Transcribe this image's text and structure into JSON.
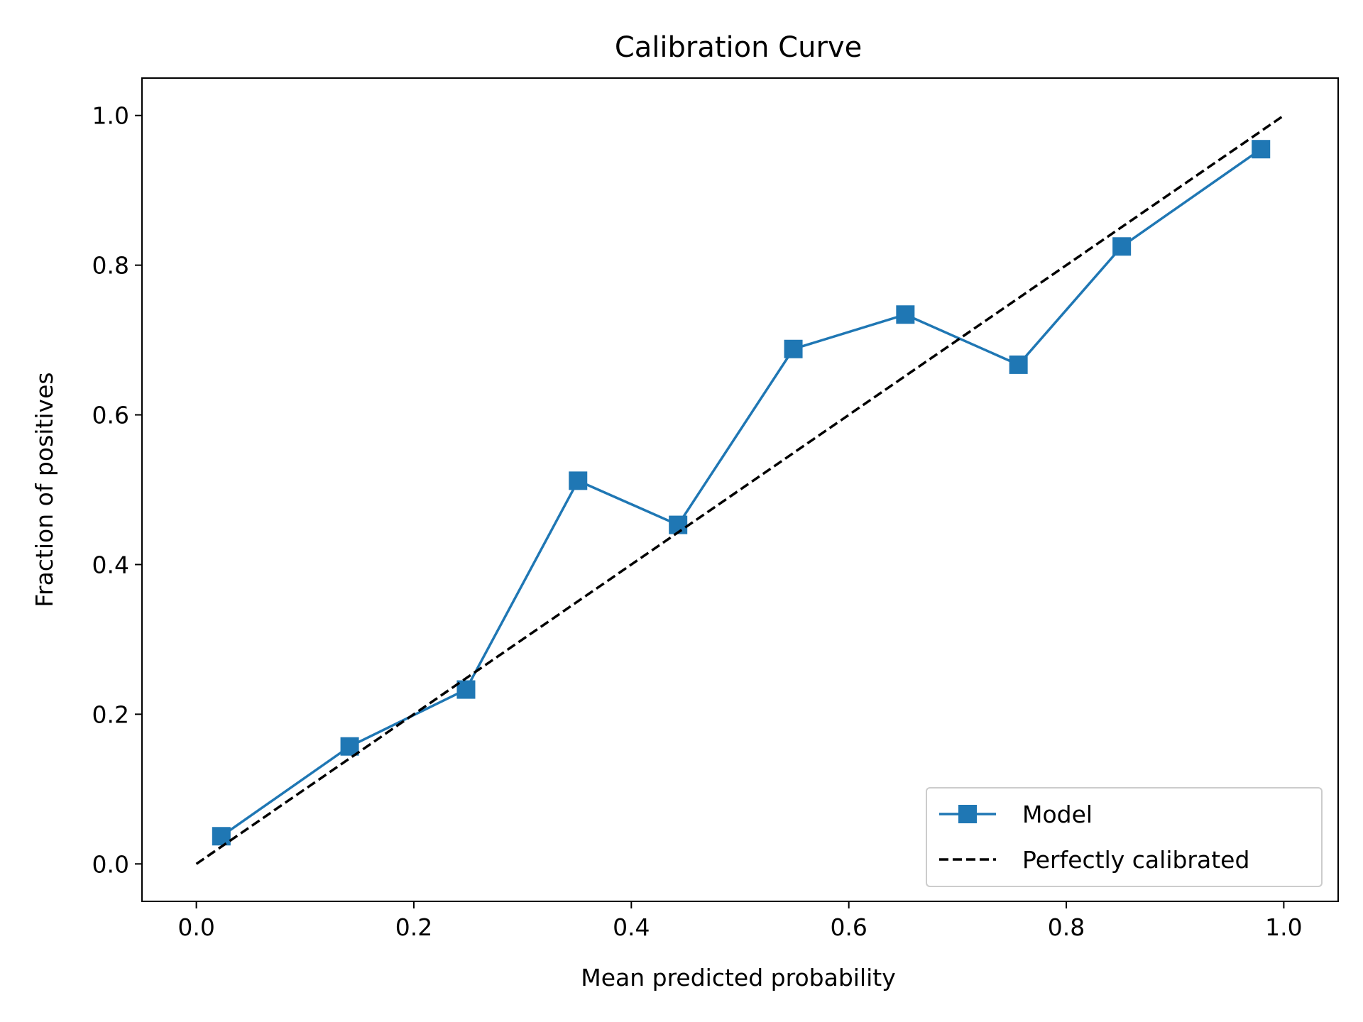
{
  "chart_data": {
    "type": "line",
    "title": "Calibration Curve",
    "xlabel": "Mean predicted probability",
    "ylabel": "Fraction of positives",
    "xlim": [
      -0.05,
      1.05
    ],
    "ylim": [
      -0.05,
      1.05
    ],
    "xticks": [
      "0.0",
      "0.2",
      "0.4",
      "0.6",
      "0.8",
      "1.0"
    ],
    "yticks": [
      "0.0",
      "0.2",
      "0.4",
      "0.6",
      "0.8",
      "1.0"
    ],
    "grid": false,
    "legend_position": "lower-right",
    "series": [
      {
        "name": "Model",
        "color": "#1f77b4",
        "marker": "square",
        "line_style": "solid",
        "x": [
          0.023,
          0.141,
          0.248,
          0.351,
          0.443,
          0.549,
          0.652,
          0.756,
          0.851,
          0.979
        ],
        "y": [
          0.037,
          0.157,
          0.233,
          0.512,
          0.453,
          0.688,
          0.734,
          0.667,
          0.825,
          0.955
        ]
      },
      {
        "name": "Perfectly calibrated",
        "color": "#000000",
        "marker": "none",
        "line_style": "dashed",
        "x": [
          0.0,
          1.0
        ],
        "y": [
          0.0,
          1.0
        ]
      }
    ]
  }
}
